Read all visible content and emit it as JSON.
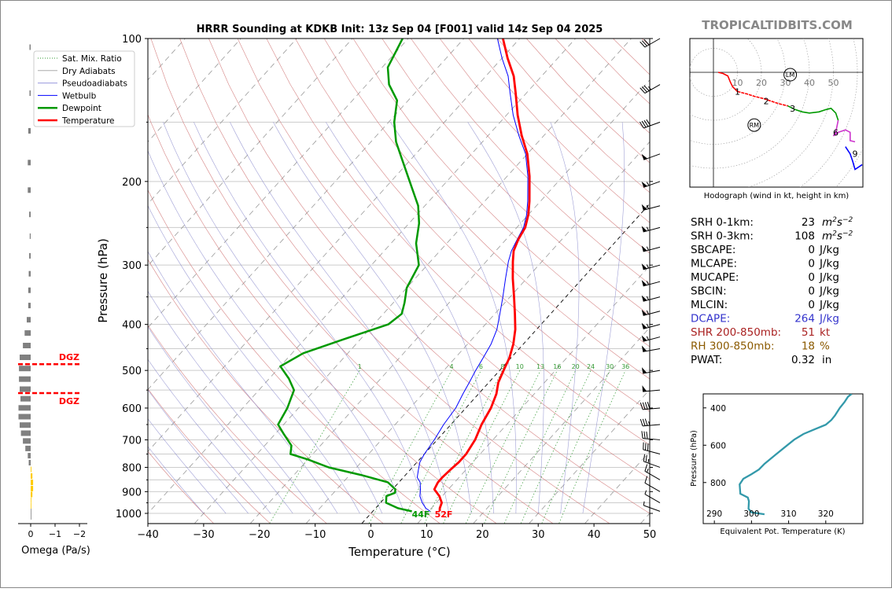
{
  "title": "HRRR Sounding at KDKB Init: 13z Sep 04 [F001] valid 14z Sep 04 2025",
  "site_label": "TROPICALTIDBITS.COM",
  "colors": {
    "temperature": "#ff0000",
    "dewpoint": "#009900",
    "wetbulb": "#0000ff",
    "dry_adiabat": "#cc6666",
    "moist_adiabat": "#8888cc",
    "mixing_ratio": "#339933",
    "theta_e": "#3399aa",
    "dgz": "#ff0000",
    "omega_down": "#808080",
    "omega_up": "#ffcc00"
  },
  "chart_data": [
    {
      "type": "line",
      "name": "skew-t",
      "xlabel": "Temperature (°C)",
      "ylabel": "Pressure (hPa)",
      "xlim": [
        -40,
        50
      ],
      "ylim": [
        1050,
        100
      ],
      "y_scale": "log",
      "x_ticks": [
        "−40",
        "−30",
        "−20",
        "−10",
        "0",
        "10",
        "20",
        "30",
        "40",
        "50"
      ],
      "y_ticks": [
        "100",
        "200",
        "300",
        "400",
        "500",
        "600",
        "700",
        "800",
        "900",
        "1000"
      ],
      "legend": {
        "placement": "top-left",
        "entries": [
          "Sat. Mix. Ratio",
          "Dry Adiabats",
          "Pseudoadiabats",
          "Wetbulb",
          "Dewpoint",
          "Temperature"
        ]
      },
      "mixing_ratio_labels": [
        "1",
        "4",
        "6",
        "8",
        "10",
        "13",
        "16",
        "20",
        "24",
        "30",
        "36"
      ],
      "surface_labels": {
        "dewpoint": "44F",
        "temperature": "52F"
      },
      "series": [
        {
          "name": "Temperature",
          "points": [
            [
              12,
              990
            ],
            [
              11.5,
              975
            ],
            [
              11,
              950
            ],
            [
              9.5,
              920
            ],
            [
              7.5,
              890
            ],
            [
              7,
              860
            ],
            [
              7,
              840
            ],
            [
              7.2,
              810
            ],
            [
              7.5,
              780
            ],
            [
              7.5,
              750
            ],
            [
              6.8,
              700
            ],
            [
              5.5,
              650
            ],
            [
              4.5,
              600
            ],
            [
              3.2,
              560
            ],
            [
              1.7,
              530
            ],
            [
              0.7,
              500
            ],
            [
              -0.3,
              470
            ],
            [
              -1.8,
              440
            ],
            [
              -3.8,
              410
            ],
            [
              -6.4,
              380
            ],
            [
              -9.3,
              350
            ],
            [
              -12.5,
              320
            ],
            [
              -15.2,
              295
            ],
            [
              -16.8,
              280
            ],
            [
              -17.8,
              265
            ],
            [
              -18.5,
              250
            ],
            [
              -20,
              235
            ],
            [
              -22,
              220
            ],
            [
              -26,
              195
            ],
            [
              -30,
              175
            ],
            [
              -34,
              160
            ],
            [
              -38,
              145
            ],
            [
              -42,
              130
            ],
            [
              -45,
              120
            ],
            [
              -49,
              110
            ],
            [
              -53,
              100
            ]
          ]
        },
        {
          "name": "Wetbulb",
          "points": [
            [
              10.3,
              990
            ],
            [
              9,
              975
            ],
            [
              7.5,
              950
            ],
            [
              6,
              920
            ],
            [
              5,
              890
            ],
            [
              3.8,
              860
            ],
            [
              2.5,
              840
            ],
            [
              1.5,
              810
            ],
            [
              0.5,
              780
            ],
            [
              0,
              750
            ],
            [
              -0.5,
              700
            ],
            [
              -1.3,
              650
            ],
            [
              -1.8,
              600
            ],
            [
              -2.8,
              560
            ],
            [
              -3.5,
              530
            ],
            [
              -4.3,
              500
            ],
            [
              -5,
              470
            ],
            [
              -5.8,
              440
            ],
            [
              -7.1,
              410
            ],
            [
              -9.1,
              380
            ],
            [
              -11.3,
              350
            ],
            [
              -13.8,
              320
            ],
            [
              -16,
              295
            ],
            [
              -17.2,
              280
            ],
            [
              -18,
              265
            ],
            [
              -18.8,
              250
            ],
            [
              -20.3,
              235
            ],
            [
              -22.3,
              220
            ],
            [
              -26.3,
              195
            ],
            [
              -30.3,
              175
            ],
            [
              -34.5,
              160
            ],
            [
              -38.8,
              145
            ],
            [
              -43,
              130
            ],
            [
              -46,
              120
            ],
            [
              -50,
              110
            ],
            [
              -54,
              100
            ]
          ]
        },
        {
          "name": "Dewpoint",
          "points": [
            [
              7,
              990
            ],
            [
              4,
              975
            ],
            [
              1,
              950
            ],
            [
              0,
              920
            ],
            [
              1,
              905
            ],
            [
              0.5,
              890
            ],
            [
              -2,
              860
            ],
            [
              -8,
              830
            ],
            [
              -15,
              800
            ],
            [
              -20,
              770
            ],
            [
              -24,
              750
            ],
            [
              -25.2,
              720
            ],
            [
              -28.5,
              680
            ],
            [
              -31,
              650
            ],
            [
              -32,
              600
            ],
            [
              -33.7,
              550
            ],
            [
              -36.5,
              520
            ],
            [
              -40,
              490
            ],
            [
              -38,
              460
            ],
            [
              -33,
              430
            ],
            [
              -27.4,
              400
            ],
            [
              -26.7,
              380
            ],
            [
              -28,
              360
            ],
            [
              -30,
              335
            ],
            [
              -31.5,
              300
            ],
            [
              -35.5,
              270
            ],
            [
              -38.2,
              245
            ],
            [
              -41.2,
              225
            ],
            [
              -45.5,
              205
            ],
            [
              -51.5,
              180
            ],
            [
              -55.5,
              165
            ],
            [
              -59,
              150
            ],
            [
              -62,
              135
            ],
            [
              -66,
              125
            ],
            [
              -69,
              115
            ],
            [
              -71,
              100
            ]
          ]
        }
      ]
    },
    {
      "type": "scatter",
      "name": "hodograph",
      "xlabel": "Hodograph (wind in kt, height in km)",
      "ring_labels": [
        "10",
        "20",
        "30",
        "40",
        "50"
      ],
      "markers": [
        {
          "label": "LM",
          "u": 32,
          "v": -1
        },
        {
          "label": "RM",
          "u": 17,
          "v": -22
        }
      ],
      "height_labels": [
        {
          "label": "1",
          "u": 10,
          "v": -8
        },
        {
          "label": "2",
          "u": 22,
          "v": -12
        },
        {
          "label": "3",
          "u": 33,
          "v": -15
        },
        {
          "label": "6",
          "u": 51,
          "v": -25
        },
        {
          "label": "9",
          "u": 59,
          "v": -34
        }
      ],
      "series": [
        {
          "name": "0-1 km",
          "color": "#ff0000",
          "points": [
            [
              2,
              0
            ],
            [
              4,
              -0.5
            ],
            [
              6,
              -1.5
            ],
            [
              7,
              -4
            ],
            [
              8,
              -6
            ],
            [
              10,
              -8
            ]
          ]
        },
        {
          "name": "1-3 km",
          "color": "#ff0000",
          "points": [
            [
              10,
              -8
            ],
            [
              14,
              -9
            ],
            [
              17,
              -10
            ],
            [
              21,
              -11
            ],
            [
              24,
              -12
            ],
            [
              27,
              -13
            ],
            [
              31,
              -14
            ]
          ]
        },
        {
          "name": "3-6 km",
          "color": "#009900",
          "points": [
            [
              31,
              -14
            ],
            [
              34,
              -15.5
            ],
            [
              37,
              -16.5
            ],
            [
              40,
              -17
            ],
            [
              44,
              -16.5
            ],
            [
              47,
              -15.5
            ],
            [
              49,
              -15
            ],
            [
              51,
              -17
            ],
            [
              52,
              -20
            ]
          ]
        },
        {
          "name": "6-9 km",
          "color": "#cc33cc",
          "points": [
            [
              52,
              -20
            ],
            [
              51,
              -25
            ],
            [
              50,
              -26.5
            ],
            [
              52,
              -25
            ],
            [
              55,
              -24
            ],
            [
              57,
              -25
            ],
            [
              57,
              -27
            ],
            [
              57,
              -28.5
            ],
            [
              59,
              -29
            ]
          ]
        },
        {
          "name": "9+ km",
          "color": "#0000ff",
          "points": [
            [
              55,
              -31
            ],
            [
              57,
              -34
            ],
            [
              58,
              -37
            ],
            [
              59,
              -40.5
            ],
            [
              62,
              -38.5
            ]
          ]
        }
      ]
    },
    {
      "type": "line",
      "name": "theta-e",
      "xlabel": "Equivalent Pot. Temperature (K)",
      "ylabel": "Pressure (hPa)",
      "xlim": [
        287,
        330
      ],
      "ylim": [
        1020,
        325
      ],
      "x_ticks": [
        "290",
        "300",
        "310",
        "320"
      ],
      "y_ticks": [
        "400",
        "600",
        "800"
      ],
      "series": [
        {
          "name": "theta-e",
          "points": [
            [
              303.5,
              970
            ],
            [
              300,
              960
            ],
            [
              299.2,
              940
            ],
            [
              299.3,
              900
            ],
            [
              299,
              880
            ],
            [
              297,
              860
            ],
            [
              296.8,
              810
            ],
            [
              297.8,
              780
            ],
            [
              300,
              755
            ],
            [
              302,
              730
            ],
            [
              303.5,
              700
            ],
            [
              306.5,
              650
            ],
            [
              309,
              610
            ],
            [
              311.5,
              570
            ],
            [
              314,
              540
            ],
            [
              317,
              515
            ],
            [
              320,
              490
            ],
            [
              321.5,
              465
            ],
            [
              322.5,
              440
            ],
            [
              323.8,
              400
            ],
            [
              325,
              370
            ],
            [
              326,
              340
            ],
            [
              327,
              325
            ]
          ]
        }
      ]
    },
    {
      "type": "bar",
      "name": "omega",
      "xlabel": "Omega (Pa/s)",
      "x_ticks": [
        "0",
        "−1",
        "−2"
      ],
      "xlim": [
        1,
        -2
      ],
      "comment_free_levels": true,
      "levels_hpa": [
        100,
        125,
        150,
        175,
        200,
        225,
        250,
        275,
        300,
        325,
        350,
        375,
        400,
        425,
        450,
        475,
        500,
        525,
        550,
        575,
        600,
        625,
        650,
        675,
        700,
        725,
        750,
        775,
        800,
        825,
        850,
        875,
        900,
        925,
        950,
        975
      ],
      "values": [
        0.05,
        0.05,
        0.1,
        0.12,
        0.12,
        0.06,
        0.04,
        0.06,
        0.08,
        0.1,
        0.1,
        0.16,
        0.25,
        0.32,
        0.45,
        0.48,
        0.48,
        0.45,
        0.42,
        0.5,
        0.5,
        0.45,
        0.4,
        0.32,
        0.22,
        0.12,
        0.08,
        -0.03,
        -0.07,
        -0.1,
        -0.1,
        -0.07,
        -0.02,
        -0.01,
        0.0,
        0.0
      ],
      "dgz_label": "DGZ",
      "dgz_levels_hpa": [
        485,
        558
      ]
    }
  ],
  "indices": [
    {
      "label": "SRH 0-1km:",
      "value": "23",
      "unit": "m2s-2",
      "color": "#000000"
    },
    {
      "label": "SRH 0-3km:",
      "value": "108",
      "unit": "m2s-2",
      "color": "#000000"
    },
    {
      "label": "SBCAPE:",
      "value": "0",
      "unit": "J/kg",
      "color": "#000000"
    },
    {
      "label": "MLCAPE:",
      "value": "0",
      "unit": "J/kg",
      "color": "#000000"
    },
    {
      "label": "MUCAPE:",
      "value": "0",
      "unit": "J/kg",
      "color": "#000000"
    },
    {
      "label": "SBCIN:",
      "value": "0",
      "unit": "J/kg",
      "color": "#000000"
    },
    {
      "label": "MLCIN:",
      "value": "0",
      "unit": "J/kg",
      "color": "#000000"
    },
    {
      "label": "DCAPE:",
      "value": "264",
      "unit": "J/kg",
      "color": "#3333cc"
    },
    {
      "label": "SHR 200-850mb:",
      "value": "51",
      "unit": "kt",
      "color": "#aa2222"
    },
    {
      "label": "RH 300-850mb:",
      "value": "18",
      "unit": "%",
      "color": "#8b5a00"
    },
    {
      "label": "PWAT:",
      "value": "0.32",
      "unit": "in",
      "color": "#000000"
    }
  ],
  "wind_barbs": [
    {
      "p": 100,
      "speed": 30,
      "dir": 240
    },
    {
      "p": 125,
      "speed": 35,
      "dir": 240
    },
    {
      "p": 150,
      "speed": 40,
      "dir": 250
    },
    {
      "p": 175,
      "speed": 50,
      "dir": 250
    },
    {
      "p": 200,
      "speed": 55,
      "dir": 250
    },
    {
      "p": 225,
      "speed": 55,
      "dir": 255
    },
    {
      "p": 250,
      "speed": 55,
      "dir": 255
    },
    {
      "p": 275,
      "speed": 55,
      "dir": 255
    },
    {
      "p": 300,
      "speed": 55,
      "dir": 255
    },
    {
      "p": 325,
      "speed": 55,
      "dir": 255
    },
    {
      "p": 350,
      "speed": 55,
      "dir": 255
    },
    {
      "p": 375,
      "speed": 55,
      "dir": 255
    },
    {
      "p": 400,
      "speed": 55,
      "dir": 255
    },
    {
      "p": 425,
      "speed": 55,
      "dir": 255
    },
    {
      "p": 450,
      "speed": 50,
      "dir": 260
    },
    {
      "p": 500,
      "speed": 50,
      "dir": 260
    },
    {
      "p": 550,
      "speed": 50,
      "dir": 265
    },
    {
      "p": 600,
      "speed": 40,
      "dir": 265
    },
    {
      "p": 650,
      "speed": 35,
      "dir": 265
    },
    {
      "p": 700,
      "speed": 30,
      "dir": 275
    },
    {
      "p": 750,
      "speed": 30,
      "dir": 285
    },
    {
      "p": 800,
      "speed": 25,
      "dir": 290
    },
    {
      "p": 850,
      "speed": 15,
      "dir": 300
    },
    {
      "p": 900,
      "speed": 10,
      "dir": 300
    },
    {
      "p": 950,
      "speed": 5,
      "dir": 300
    },
    {
      "p": 990,
      "speed": 5,
      "dir": 290
    }
  ]
}
